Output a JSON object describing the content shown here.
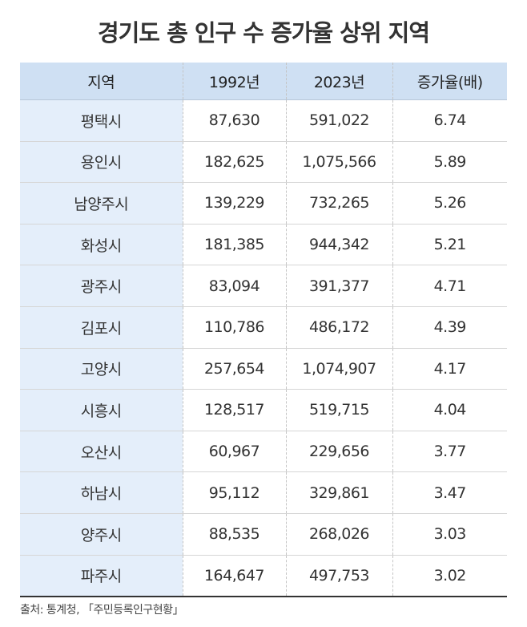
{
  "title": "경기도 총 인구 수 증가율 상위 지역",
  "table": {
    "header": [
      "지역",
      "1992년",
      "2023년",
      "증가율(배)"
    ],
    "rows": [
      [
        "평택시",
        "87,630",
        "591,022",
        "6.74"
      ],
      [
        "용인시",
        "182,625",
        "1,075,566",
        "5.89"
      ],
      [
        "남양주시",
        "139,229",
        "732,265",
        "5.26"
      ],
      [
        "화성시",
        "181,385",
        "944,342",
        "5.21"
      ],
      [
        "광주시",
        "83,094",
        "391,377",
        "4.71"
      ],
      [
        "김포시",
        "110,786",
        "486,172",
        "4.39"
      ],
      [
        "고양시",
        "257,654",
        "1,074,907",
        "4.17"
      ],
      [
        "시흥시",
        "128,517",
        "519,715",
        "4.04"
      ],
      [
        "오산시",
        "60,967",
        "229,656",
        "3.77"
      ],
      [
        "하남시",
        "95,112",
        "329,861",
        "3.47"
      ],
      [
        "양주시",
        "88,535",
        "268,026",
        "3.03"
      ],
      [
        "파주시",
        "164,647",
        "497,753",
        "3.02"
      ]
    ]
  },
  "source": "출처: 통계청, 「주민등록인구현황」"
}
